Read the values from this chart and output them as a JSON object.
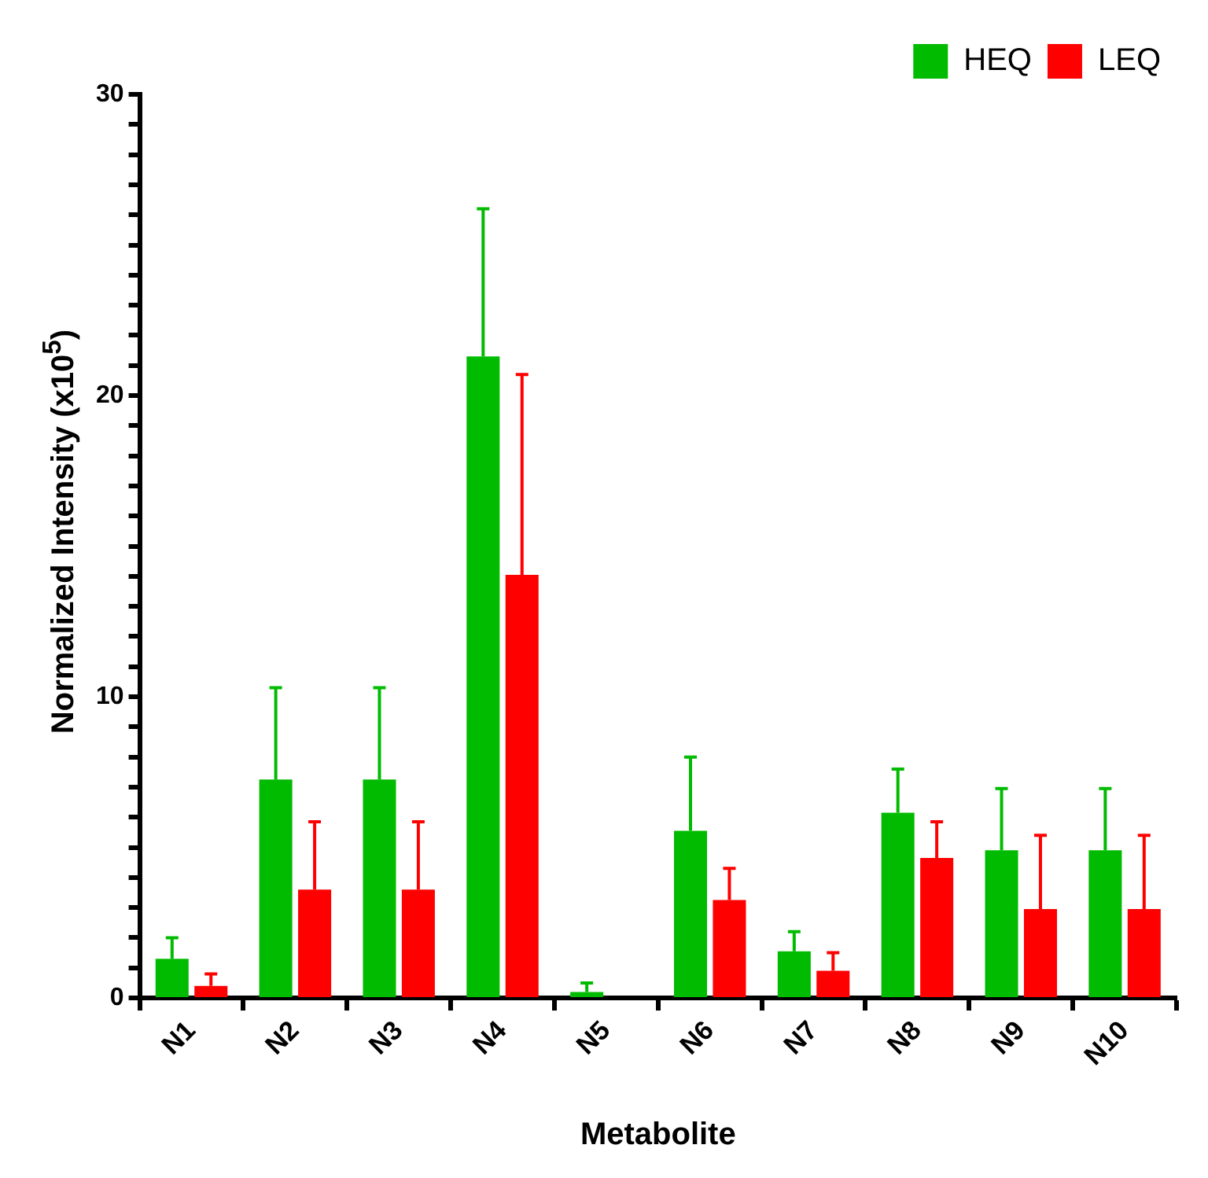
{
  "chart_data": {
    "type": "bar",
    "xlabel": "Metabolite",
    "ylabel": "Normalized Intensity (x10$^{5}$)",
    "categories": [
      "N1",
      "N2",
      "N3",
      "N4",
      "N5",
      "N6",
      "N7",
      "N8",
      "N9",
      "N10"
    ],
    "series": [
      {
        "name": "HEQ",
        "color": "#00bb00",
        "values": [
          1.3,
          7.25,
          7.25,
          21.3,
          0.2,
          5.55,
          1.55,
          6.15,
          4.9,
          4.9
        ],
        "errors": [
          [
            1.3,
            2.0
          ],
          [
            7.25,
            10.3
          ],
          [
            7.25,
            10.3
          ],
          [
            21.3,
            26.2
          ],
          [
            0.2,
            0.5
          ],
          [
            5.55,
            8.0
          ],
          [
            1.55,
            2.2
          ],
          [
            6.15,
            7.6
          ],
          [
            4.9,
            6.95
          ],
          [
            4.9,
            6.95
          ]
        ]
      },
      {
        "name": "LEQ",
        "color": "#ff0000",
        "values": [
          0.4,
          3.6,
          3.6,
          14.05,
          0,
          3.25,
          0.9,
          4.65,
          2.95,
          2.95
        ],
        "errors": [
          [
            0.4,
            0.8
          ],
          [
            3.6,
            5.85
          ],
          [
            3.6,
            5.85
          ],
          [
            14.05,
            20.7
          ],
          null,
          [
            3.25,
            4.3
          ],
          [
            0.9,
            1.5
          ],
          [
            4.65,
            5.85
          ],
          [
            2.95,
            5.4
          ],
          [
            2.95,
            5.4
          ]
        ]
      }
    ],
    "ylim": [
      0,
      30
    ],
    "yticks": [
      0,
      {
        "value": 1,
        "label": null
      },
      {
        "value": 2,
        "label": null
      },
      {
        "value": 3,
        "label": null
      },
      {
        "value": 4,
        "label": null
      },
      {
        "value": 5,
        "label": null
      },
      {
        "value": 6,
        "label": null
      },
      {
        "value": 7,
        "label": null
      },
      {
        "value": 8,
        "label": null
      },
      {
        "value": 9,
        "label": null
      },
      10,
      {
        "value": 11,
        "label": null
      },
      {
        "value": 12,
        "label": null
      },
      {
        "value": 13,
        "label": null
      },
      {
        "value": 14,
        "label": null
      },
      {
        "value": 15,
        "label": null
      },
      {
        "value": 16,
        "label": null
      },
      {
        "value": 17,
        "label": null
      },
      {
        "value": 18,
        "label": null
      },
      {
        "value": 19,
        "label": null
      },
      20,
      {
        "value": 21,
        "label": null
      },
      {
        "value": 22,
        "label": null
      },
      {
        "value": 23,
        "label": null
      },
      {
        "value": 24,
        "label": null
      },
      {
        "value": 25,
        "label": null
      },
      {
        "value": 26,
        "label": null
      },
      {
        "value": 27,
        "label": null
      },
      {
        "value": 28,
        "label": null
      },
      {
        "value": 29,
        "label": null
      },
      30
    ],
    "grid": false,
    "legend": "top right"
  }
}
